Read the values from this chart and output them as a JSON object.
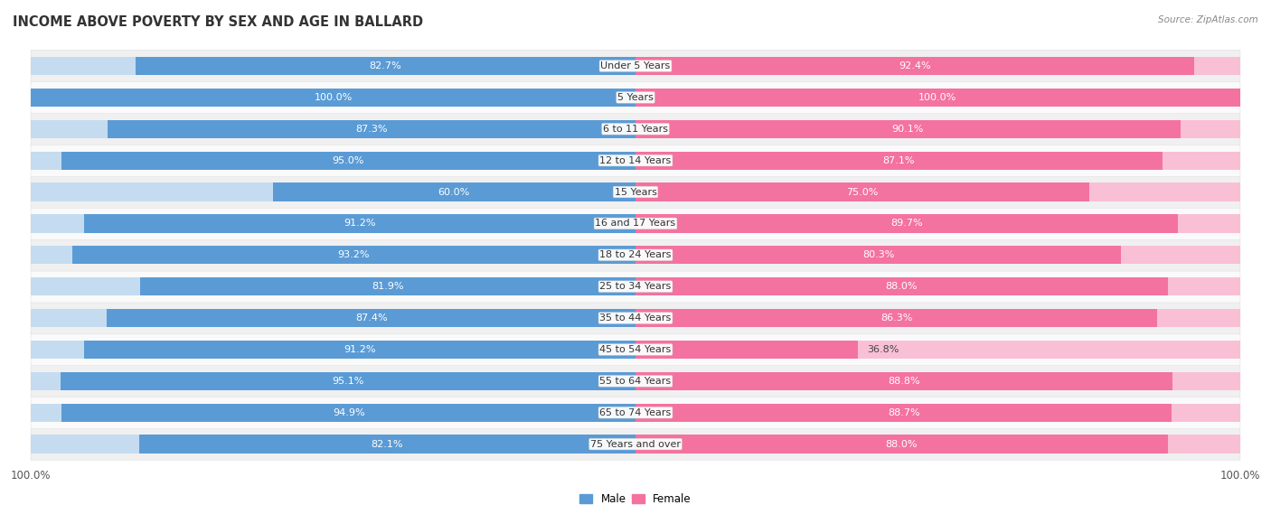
{
  "title": "INCOME ABOVE POVERTY BY SEX AND AGE IN BALLARD",
  "source": "Source: ZipAtlas.com",
  "categories": [
    "Under 5 Years",
    "5 Years",
    "6 to 11 Years",
    "12 to 14 Years",
    "15 Years",
    "16 and 17 Years",
    "18 to 24 Years",
    "25 to 34 Years",
    "35 to 44 Years",
    "45 to 54 Years",
    "55 to 64 Years",
    "65 to 74 Years",
    "75 Years and over"
  ],
  "male_values": [
    82.7,
    100.0,
    87.3,
    95.0,
    60.0,
    91.2,
    93.2,
    81.9,
    87.4,
    91.2,
    95.1,
    94.9,
    82.1
  ],
  "female_values": [
    92.4,
    100.0,
    90.1,
    87.1,
    75.0,
    89.7,
    80.3,
    88.0,
    86.3,
    36.8,
    88.8,
    88.7,
    88.0
  ],
  "male_color": "#5b9bd5",
  "female_color": "#f472a0",
  "male_color_light": "#c5dcf0",
  "female_color_light": "#f9c0d5",
  "row_bg_even": "#f0f0f0",
  "row_bg_odd": "#fafafa",
  "axis_max": 100.0,
  "bar_height": 0.58,
  "title_fontsize": 10.5,
  "label_fontsize": 8.0,
  "category_fontsize": 8.0,
  "legend_fontsize": 8.5,
  "source_fontsize": 7.5
}
